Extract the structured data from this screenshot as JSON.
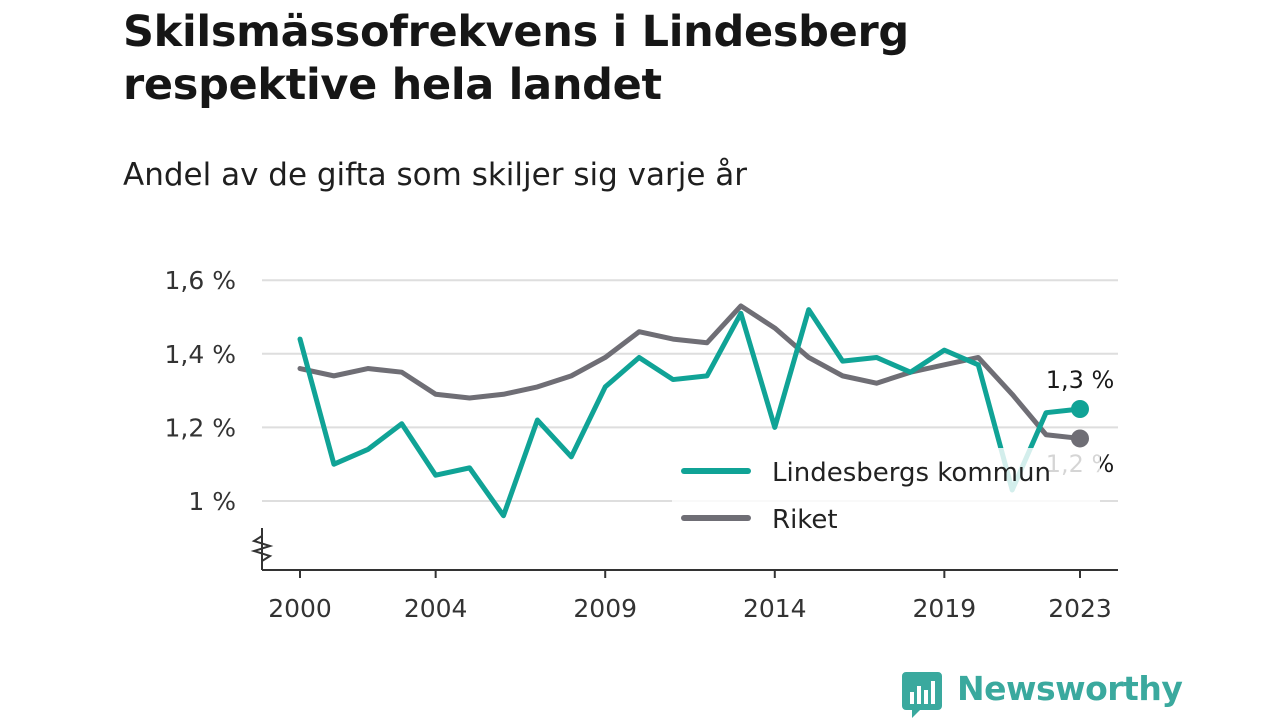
{
  "colors": {
    "lindesberg": "#10a396",
    "riket": "#6f6e75",
    "grid": "#dedede",
    "axis": "#333333",
    "brand": "#3aa99e"
  },
  "brand": {
    "name": "Newsworthy",
    "icon": "bar-chart-icon"
  },
  "chart_data": {
    "type": "line",
    "title": "Skilsmässofrekvens i Lindesberg respektive hela landet",
    "subtitle": "Andel av de gifta som skiljer sig varje år",
    "xlabel": "",
    "ylabel": "",
    "x": [
      2000,
      2001,
      2002,
      2003,
      2004,
      2005,
      2006,
      2007,
      2008,
      2009,
      2010,
      2011,
      2012,
      2013,
      2014,
      2015,
      2016,
      2017,
      2018,
      2019,
      2020,
      2021,
      2022,
      2023
    ],
    "x_ticks": [
      {
        "value": 2000,
        "label": "2000"
      },
      {
        "value": 2004,
        "label": "2004"
      },
      {
        "value": 2009,
        "label": "2009"
      },
      {
        "value": 2014,
        "label": "2014"
      },
      {
        "value": 2019,
        "label": "2019"
      },
      {
        "value": 2023,
        "label": "2023"
      }
    ],
    "y_ticks": [
      {
        "value": 1.0,
        "label": "1 %"
      },
      {
        "value": 1.2,
        "label": "1,2 %"
      },
      {
        "value": 1.4,
        "label": "1,4 %"
      },
      {
        "value": 1.6,
        "label": "1,6 %"
      }
    ],
    "ylim": [
      0.82,
      1.6
    ],
    "y_axis_break": true,
    "grid": true,
    "legend_position": "bottom-right",
    "series": [
      {
        "name": "Lindesbergs kommun",
        "color_key": "lindesberg",
        "values": [
          1.44,
          1.1,
          1.14,
          1.21,
          1.07,
          1.09,
          0.96,
          1.22,
          1.12,
          1.31,
          1.39,
          1.33,
          1.34,
          1.51,
          1.2,
          1.52,
          1.38,
          1.39,
          1.35,
          1.41,
          1.37,
          1.03,
          1.24,
          1.25
        ],
        "end_label": "1,3 %"
      },
      {
        "name": "Riket",
        "color_key": "riket",
        "values": [
          1.36,
          1.34,
          1.36,
          1.35,
          1.29,
          1.28,
          1.29,
          1.31,
          1.34,
          1.39,
          1.46,
          1.44,
          1.43,
          1.53,
          1.47,
          1.39,
          1.34,
          1.32,
          1.35,
          1.37,
          1.39,
          1.29,
          1.18,
          1.17
        ],
        "end_label": "1,2 %"
      }
    ]
  }
}
